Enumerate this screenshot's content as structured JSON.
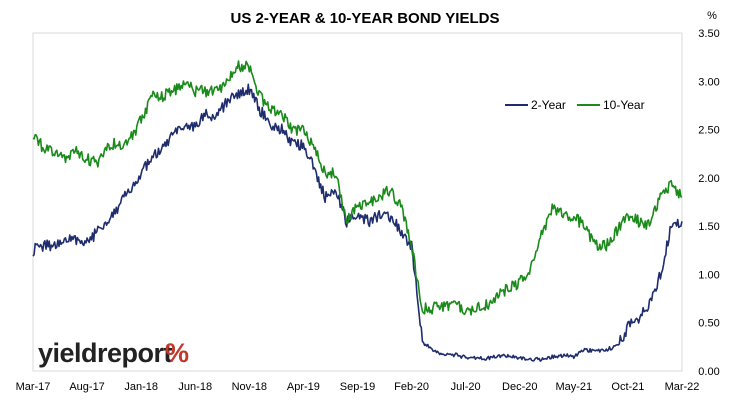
{
  "chart_data": {
    "type": "line",
    "title": "US 2-YEAR & 10-YEAR BOND YIELDS",
    "y_unit": "%",
    "y_axis_side": "right",
    "ylim": [
      0,
      3.5
    ],
    "y_ticks": [
      "0.00",
      "0.50",
      "1.00",
      "1.50",
      "2.00",
      "2.50",
      "3.00",
      "3.50"
    ],
    "x_tick_labels": [
      "Mar-17",
      "Aug-17",
      "Jan-18",
      "Jun-18",
      "Nov-18",
      "Apr-19",
      "Sep-19",
      "Feb-20",
      "Jul-20",
      "Dec-20",
      "May-21",
      "Oct-21",
      "Mar-22"
    ],
    "x_range": [
      "2017-03",
      "2022-03"
    ],
    "grid": {
      "horizontal": false,
      "vertical": false
    },
    "legend_position": "top-right",
    "series": [
      {
        "name": "2-Year",
        "color": "#1f2d6e",
        "points": [
          [
            "2017-03",
            1.25
          ],
          [
            "2017-04",
            1.3
          ],
          [
            "2017-05",
            1.3
          ],
          [
            "2017-06",
            1.35
          ],
          [
            "2017-07",
            1.37
          ],
          [
            "2017-08",
            1.33
          ],
          [
            "2017-09",
            1.45
          ],
          [
            "2017-10",
            1.58
          ],
          [
            "2017-11",
            1.72
          ],
          [
            "2017-12",
            1.88
          ],
          [
            "2018-01",
            2.05
          ],
          [
            "2018-02",
            2.2
          ],
          [
            "2018-03",
            2.3
          ],
          [
            "2018-04",
            2.45
          ],
          [
            "2018-05",
            2.5
          ],
          [
            "2018-06",
            2.55
          ],
          [
            "2018-07",
            2.65
          ],
          [
            "2018-08",
            2.65
          ],
          [
            "2018-09",
            2.8
          ],
          [
            "2018-10",
            2.85
          ],
          [
            "2018-11",
            2.92
          ],
          [
            "2018-12",
            2.7
          ],
          [
            "2019-01",
            2.55
          ],
          [
            "2019-02",
            2.5
          ],
          [
            "2019-03",
            2.35
          ],
          [
            "2019-04",
            2.35
          ],
          [
            "2019-05",
            2.1
          ],
          [
            "2019-06",
            1.8
          ],
          [
            "2019-07",
            1.85
          ],
          [
            "2019-08",
            1.55
          ],
          [
            "2019-09",
            1.6
          ],
          [
            "2019-10",
            1.55
          ],
          [
            "2019-11",
            1.6
          ],
          [
            "2019-12",
            1.6
          ],
          [
            "2020-01",
            1.45
          ],
          [
            "2020-02",
            1.3
          ],
          [
            "2020-03",
            0.3
          ],
          [
            "2020-04",
            0.22
          ],
          [
            "2020-05",
            0.17
          ],
          [
            "2020-06",
            0.17
          ],
          [
            "2020-07",
            0.14
          ],
          [
            "2020-08",
            0.14
          ],
          [
            "2020-09",
            0.13
          ],
          [
            "2020-10",
            0.15
          ],
          [
            "2020-11",
            0.16
          ],
          [
            "2020-12",
            0.13
          ],
          [
            "2021-01",
            0.12
          ],
          [
            "2021-02",
            0.12
          ],
          [
            "2021-03",
            0.15
          ],
          [
            "2021-04",
            0.16
          ],
          [
            "2021-05",
            0.15
          ],
          [
            "2021-06",
            0.22
          ],
          [
            "2021-07",
            0.2
          ],
          [
            "2021-08",
            0.22
          ],
          [
            "2021-09",
            0.26
          ],
          [
            "2021-10",
            0.45
          ],
          [
            "2021-11",
            0.55
          ],
          [
            "2021-12",
            0.7
          ],
          [
            "2022-01",
            1.0
          ],
          [
            "2022-02",
            1.5
          ],
          [
            "2022-03",
            1.55
          ]
        ]
      },
      {
        "name": "10-Year",
        "color": "#1a8a1a",
        "points": [
          [
            "2017-03",
            2.45
          ],
          [
            "2017-04",
            2.3
          ],
          [
            "2017-05",
            2.25
          ],
          [
            "2017-06",
            2.2
          ],
          [
            "2017-07",
            2.28
          ],
          [
            "2017-08",
            2.2
          ],
          [
            "2017-09",
            2.15
          ],
          [
            "2017-10",
            2.35
          ],
          [
            "2017-11",
            2.35
          ],
          [
            "2017-12",
            2.4
          ],
          [
            "2018-01",
            2.6
          ],
          [
            "2018-02",
            2.85
          ],
          [
            "2018-03",
            2.85
          ],
          [
            "2018-04",
            2.9
          ],
          [
            "2018-05",
            3.0
          ],
          [
            "2018-06",
            2.9
          ],
          [
            "2018-07",
            2.9
          ],
          [
            "2018-08",
            2.9
          ],
          [
            "2018-09",
            3.0
          ],
          [
            "2018-10",
            3.15
          ],
          [
            "2018-11",
            3.15
          ],
          [
            "2018-12",
            2.85
          ],
          [
            "2019-01",
            2.7
          ],
          [
            "2019-02",
            2.65
          ],
          [
            "2019-03",
            2.5
          ],
          [
            "2019-04",
            2.5
          ],
          [
            "2019-05",
            2.3
          ],
          [
            "2019-06",
            2.05
          ],
          [
            "2019-07",
            2.05
          ],
          [
            "2019-08",
            1.55
          ],
          [
            "2019-09",
            1.7
          ],
          [
            "2019-10",
            1.75
          ],
          [
            "2019-11",
            1.8
          ],
          [
            "2019-12",
            1.88
          ],
          [
            "2020-01",
            1.7
          ],
          [
            "2020-02",
            1.3
          ],
          [
            "2020-03",
            0.65
          ],
          [
            "2020-04",
            0.65
          ],
          [
            "2020-05",
            0.68
          ],
          [
            "2020-06",
            0.7
          ],
          [
            "2020-07",
            0.62
          ],
          [
            "2020-08",
            0.65
          ],
          [
            "2020-09",
            0.68
          ],
          [
            "2020-10",
            0.8
          ],
          [
            "2020-11",
            0.85
          ],
          [
            "2020-12",
            0.92
          ],
          [
            "2021-01",
            1.05
          ],
          [
            "2021-02",
            1.4
          ],
          [
            "2021-03",
            1.7
          ],
          [
            "2021-04",
            1.62
          ],
          [
            "2021-05",
            1.6
          ],
          [
            "2021-06",
            1.5
          ],
          [
            "2021-07",
            1.3
          ],
          [
            "2021-08",
            1.3
          ],
          [
            "2021-09",
            1.45
          ],
          [
            "2021-10",
            1.6
          ],
          [
            "2021-11",
            1.55
          ],
          [
            "2021-12",
            1.5
          ],
          [
            "2022-01",
            1.8
          ],
          [
            "2022-02",
            1.95
          ],
          [
            "2022-03",
            1.8
          ]
        ]
      }
    ]
  },
  "logo": {
    "text": "yieldreport",
    "symbol": "%",
    "text_color": "#222222",
    "symbol_colors": [
      "#c0392b",
      "#2e8b57"
    ]
  }
}
